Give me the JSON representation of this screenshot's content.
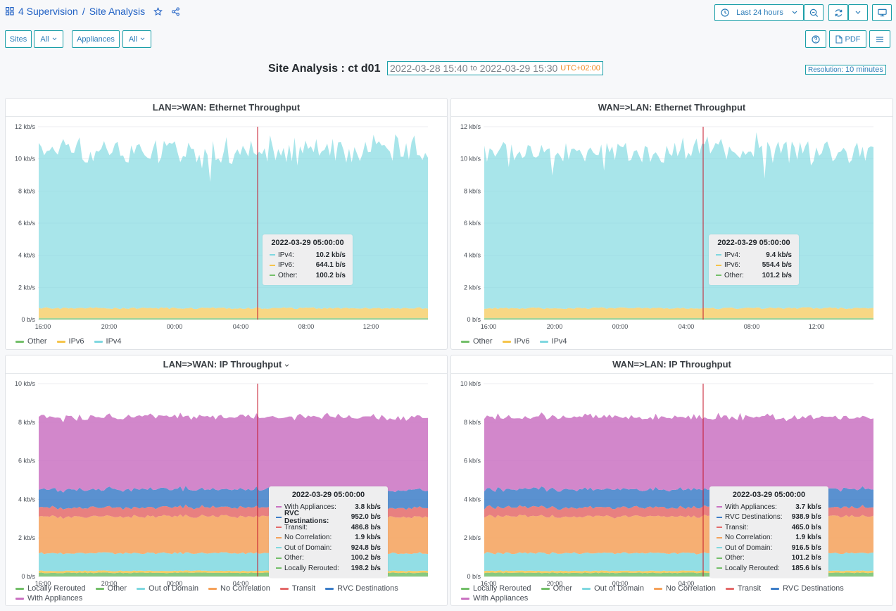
{
  "breadcrumb": {
    "parent": "4 Supervision",
    "separator": "/",
    "current": "Site Analysis"
  },
  "toolbar": {
    "time_range": "Last 24 hours",
    "export_label": "PDF"
  },
  "filters": [
    {
      "label": "Sites",
      "value": "All"
    },
    {
      "label": "Appliances",
      "value": "All"
    }
  ],
  "header": {
    "title": "Site Analysis : ct d01",
    "from": "2022-03-28 15:40",
    "to_word": "to",
    "to": "2022-03-29 15:30",
    "timezone": "UTC+02:00",
    "resolution_label": "Resolution:",
    "resolution_value": "10 minutes"
  },
  "colors": {
    "ipv4": "#7fd8e0",
    "ipv6": "#f5c44a",
    "other": "#73bf69",
    "with_appliances": "#ca72c2",
    "rvc": "#3d7ec8",
    "transit": "#e46a6a",
    "no_correlation": "#f5a15a",
    "out_of_domain": "#7fd8e0",
    "ip_other": "#f5c44a",
    "locally_rerouted": "#73bf69",
    "cursor": "#c4162a"
  },
  "panels": [
    {
      "title": "LAN=>WAN: Ethernet Throughput",
      "y_ticks": [
        "0 b/s",
        "2 kb/s",
        "4 kb/s",
        "6 kb/s",
        "8 kb/s",
        "10 kb/s",
        "12 kb/s"
      ],
      "x_ticks": [
        "16:00",
        "20:00",
        "00:00",
        "04:00",
        "08:00",
        "12:00"
      ],
      "legend": [
        "Other",
        "IPv6",
        "IPv4"
      ],
      "tooltip": {
        "time": "2022-03-29 05:00:00",
        "rows": [
          {
            "label": "IPv4:",
            "value": "10.2 kb/s"
          },
          {
            "label": "IPv6:",
            "value": "644.1 b/s"
          },
          {
            "label": "Other:",
            "value": "100.2 b/s"
          }
        ]
      }
    },
    {
      "title": "WAN=>LAN: Ethernet Throughput",
      "y_ticks": [
        "0 b/s",
        "2 kb/s",
        "4 kb/s",
        "6 kb/s",
        "8 kb/s",
        "10 kb/s",
        "12 kb/s"
      ],
      "x_ticks": [
        "16:00",
        "20:00",
        "00:00",
        "04:00",
        "08:00",
        "12:00"
      ],
      "legend": [
        "Other",
        "IPv6",
        "IPv4"
      ],
      "tooltip": {
        "time": "2022-03-29 05:00:00",
        "rows": [
          {
            "label": "IPv4:",
            "value": "9.4 kb/s"
          },
          {
            "label": "IPv6:",
            "value": "554.4 b/s"
          },
          {
            "label": "Other:",
            "value": "101.2 b/s"
          }
        ]
      }
    },
    {
      "title": "LAN=>WAN: IP Throughput",
      "y_ticks": [
        "0 b/s",
        "2 kb/s",
        "4 kb/s",
        "6 kb/s",
        "8 kb/s",
        "10 kb/s"
      ],
      "x_ticks": [
        "16:00",
        "20:00",
        "00:00",
        "04:00"
      ],
      "legend": [
        "Locally Rerouted",
        "Other",
        "Out of Domain",
        "No Correlation",
        "Transit",
        "RVC Destinations",
        "With Appliances"
      ],
      "tooltip": {
        "time": "2022-03-29 05:00:00",
        "rows": [
          {
            "label": "With Appliances:",
            "value": "3.8 kb/s"
          },
          {
            "label": "RVC Destinations:",
            "value": "952.0 b/s"
          },
          {
            "label": "Transit:",
            "value": "486.8 b/s"
          },
          {
            "label": "No Correlation:",
            "value": "1.9 kb/s"
          },
          {
            "label": "Out of Domain:",
            "value": "924.8 b/s"
          },
          {
            "label": "Other:",
            "value": "100.2 b/s"
          },
          {
            "label": "Locally Rerouted:",
            "value": "198.2 b/s"
          }
        ]
      }
    },
    {
      "title": "WAN=>LAN: IP Throughput",
      "y_ticks": [
        "0 b/s",
        "2 kb/s",
        "4 kb/s",
        "6 kb/s",
        "8 kb/s",
        "10 kb/s"
      ],
      "x_ticks": [
        "16:00",
        "20:00",
        "00:00",
        "04:00"
      ],
      "legend": [
        "Locally Rerouted",
        "Other",
        "Out of Domain",
        "No Correlation",
        "Transit",
        "RVC Destinations",
        "With Appliances"
      ],
      "tooltip": {
        "time": "2022-03-29 05:00:00",
        "rows": [
          {
            "label": "With Appliances:",
            "value": "3.7 kb/s"
          },
          {
            "label": "RVC Destinations:",
            "value": "938.9 b/s"
          },
          {
            "label": "Transit:",
            "value": "465.0 b/s"
          },
          {
            "label": "No Correlation:",
            "value": "1.9 kb/s"
          },
          {
            "label": "Out of Domain:",
            "value": "916.5 b/s"
          },
          {
            "label": "Other:",
            "value": "101.2 b/s"
          },
          {
            "label": "Locally Rerouted:",
            "value": "185.6 b/s"
          }
        ]
      }
    }
  ]
}
